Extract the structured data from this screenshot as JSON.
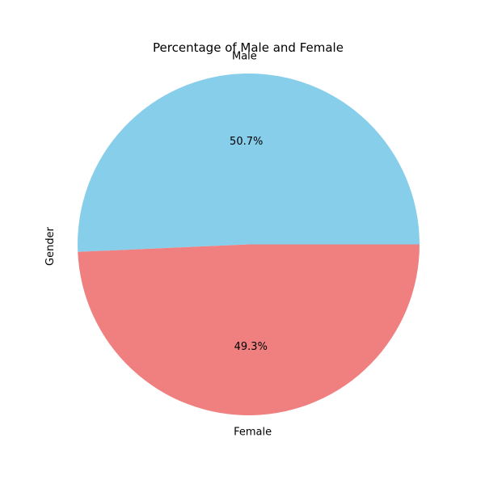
{
  "chart_data": {
    "type": "pie",
    "title": "Percentage of Male and Female",
    "ylabel": "Gender",
    "slices": [
      {
        "label": "Male",
        "value": 50.7,
        "pct_label": "50.7%",
        "color": "#87ceeb"
      },
      {
        "label": "Female",
        "value": 49.3,
        "pct_label": "49.3%",
        "color": "#f08080"
      }
    ],
    "start_angle_deg": 0,
    "direction": "counterclockwise"
  }
}
